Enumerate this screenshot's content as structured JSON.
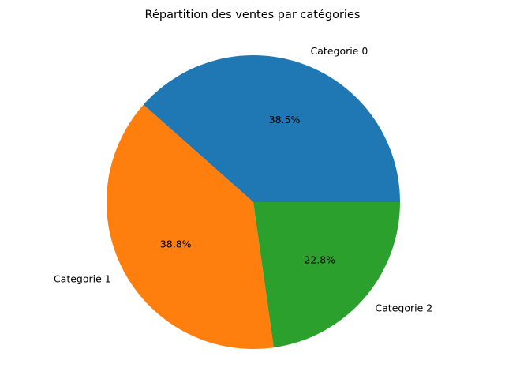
{
  "chart_data": {
    "type": "pie",
    "title": "Répartition des ventes par catégories",
    "categories": [
      "Categorie 0",
      "Categorie 1",
      "Categorie 2"
    ],
    "values": [
      38.5,
      38.8,
      22.8
    ],
    "value_labels": [
      "38.5%",
      "38.8%",
      "22.8%"
    ],
    "colors": [
      "#1f77b4",
      "#ff7f0e",
      "#2ca02c"
    ],
    "start_angle_deg": 0,
    "direction": "counterclockwise",
    "legend": "none"
  }
}
